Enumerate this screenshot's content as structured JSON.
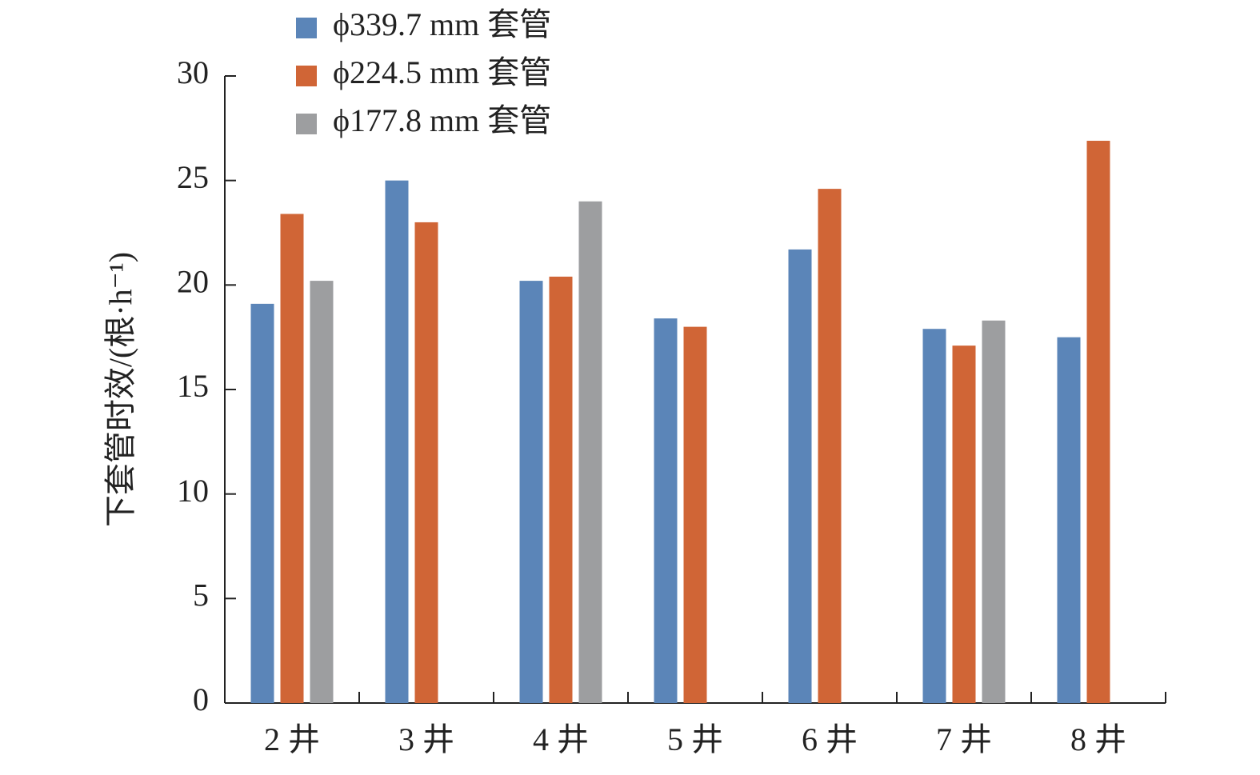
{
  "chart_data": {
    "type": "bar",
    "y_label": "下套管时效/(根·h⁻¹)",
    "categories": [
      "2 井",
      "3 井",
      "4 井",
      "5 井",
      "6 井",
      "7 井",
      "8 井"
    ],
    "series": [
      {
        "name": "ϕ339.7 mm 套管",
        "color": "#5b85b8",
        "values": [
          19.1,
          25.0,
          20.2,
          18.4,
          21.7,
          17.9,
          17.5
        ]
      },
      {
        "name": "ϕ224.5 mm 套管",
        "color": "#d06536",
        "values": [
          23.4,
          23.0,
          20.4,
          18.0,
          24.6,
          17.1,
          26.9
        ]
      },
      {
        "name": "ϕ177.8 mm 套管",
        "color": "#9d9ea0",
        "values": [
          20.2,
          null,
          24.0,
          null,
          null,
          18.3,
          null
        ]
      }
    ],
    "ylim": [
      0,
      30
    ],
    "yticks": [
      0,
      5,
      10,
      15,
      20,
      25,
      30
    ],
    "grid": false,
    "legend": "top-left"
  }
}
